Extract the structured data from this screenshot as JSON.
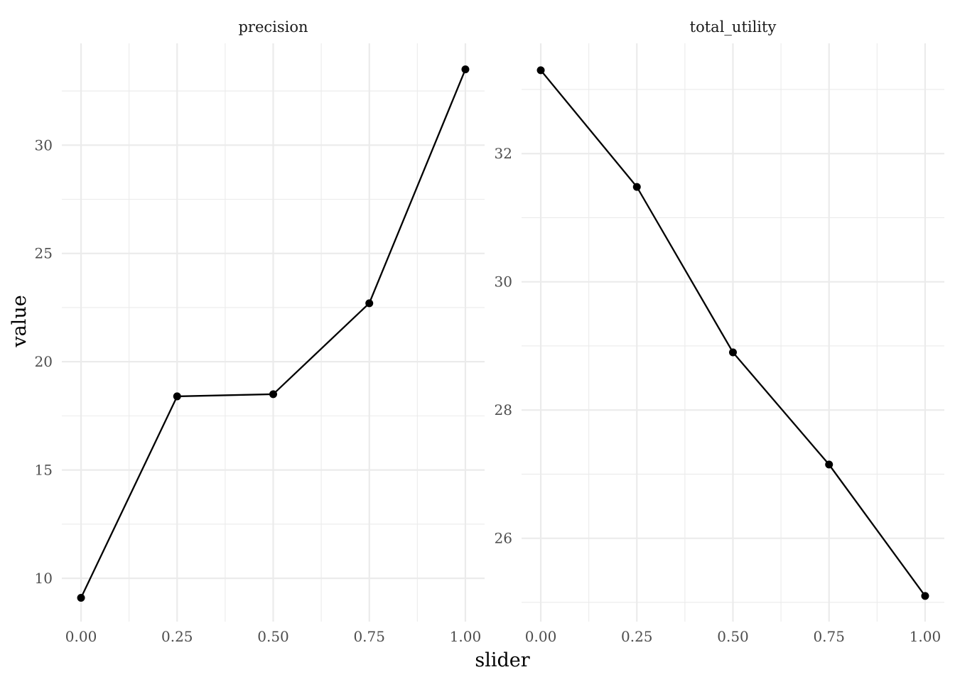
{
  "chart_data": {
    "type": "line",
    "xlabel": "slider",
    "ylabel": "value",
    "grid": true,
    "panels": [
      {
        "strip": "precision",
        "x": [
          0.0,
          0.25,
          0.5,
          0.75,
          1.0
        ],
        "y": [
          9.1,
          18.4,
          18.5,
          22.7,
          33.5
        ],
        "xlim": [
          -0.05,
          1.05
        ],
        "ylim": [
          8.0,
          34.7
        ],
        "x_ticks": [
          0.0,
          0.25,
          0.5,
          0.75,
          1.0
        ],
        "x_tick_labels": [
          "0.00",
          "0.25",
          "0.50",
          "0.75",
          "1.00"
        ],
        "y_ticks": [
          10,
          15,
          20,
          25,
          30
        ],
        "y_tick_labels": [
          "10",
          "15",
          "20",
          "25",
          "30"
        ]
      },
      {
        "strip": "total_utility",
        "x": [
          0.0,
          0.25,
          0.5,
          0.75,
          1.0
        ],
        "y": [
          33.3,
          31.48,
          28.9,
          27.15,
          25.1
        ],
        "xlim": [
          -0.05,
          1.05
        ],
        "ylim": [
          24.7,
          33.72
        ],
        "x_ticks": [
          0.0,
          0.25,
          0.5,
          0.75,
          1.0
        ],
        "x_tick_labels": [
          "0.00",
          "0.25",
          "0.50",
          "0.75",
          "1.00"
        ],
        "y_ticks": [
          26,
          28,
          30,
          32
        ],
        "y_tick_labels": [
          "26",
          "28",
          "30",
          "32"
        ]
      }
    ]
  }
}
